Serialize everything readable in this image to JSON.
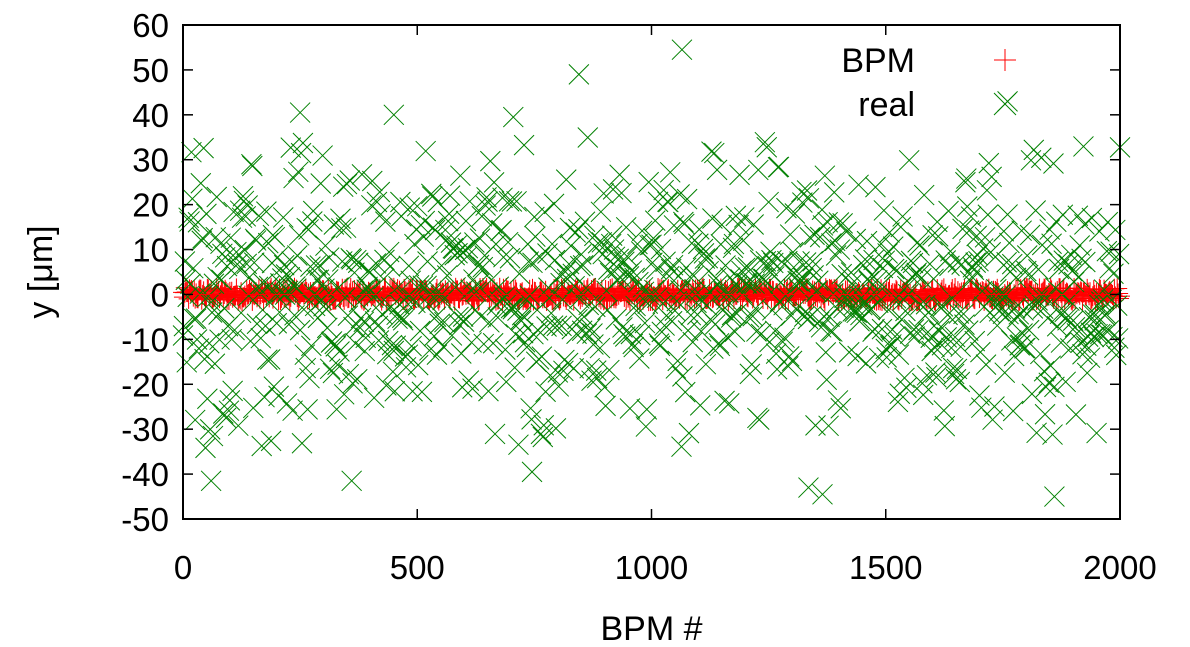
{
  "chart_data": {
    "type": "scatter",
    "title": "",
    "xlabel": "BPM #",
    "ylabel": "y [μm]",
    "xlim": [
      0,
      2000
    ],
    "ylim": [
      -50,
      60
    ],
    "x_ticks": [
      0,
      500,
      1000,
      1500,
      2000
    ],
    "y_ticks": [
      -50,
      -40,
      -30,
      -20,
      -10,
      0,
      10,
      20,
      30,
      40,
      50,
      60
    ],
    "grid": false,
    "legend_position": "top-right",
    "series": [
      {
        "name": "BPM",
        "marker": "plus",
        "color": "#ff0000",
        "x_range": [
          0,
          2000
        ],
        "x_step": 2,
        "y_envelope": [
          -1.5,
          1.5
        ],
        "count": 1001
      },
      {
        "name": "real",
        "marker": "cross",
        "color": "#008000",
        "x_range": [
          0,
          2000
        ],
        "x_step": 2,
        "distribution": "gaussian",
        "mean": 0,
        "std": 14,
        "count": 1001,
        "notable_points": [
          {
            "x": 1065,
            "y": 54.5
          },
          {
            "x": 845,
            "y": 49
          },
          {
            "x": 1760,
            "y": 43
          },
          {
            "x": 250,
            "y": 40.5
          },
          {
            "x": 450,
            "y": 40
          },
          {
            "x": 705,
            "y": 39.5
          },
          {
            "x": 1860,
            "y": -45
          },
          {
            "x": 1365,
            "y": -44.5
          },
          {
            "x": 1335,
            "y": -43
          },
          {
            "x": 60,
            "y": -41.5
          },
          {
            "x": 360,
            "y": -41.5
          },
          {
            "x": 745,
            "y": -39.5
          }
        ]
      }
    ]
  }
}
